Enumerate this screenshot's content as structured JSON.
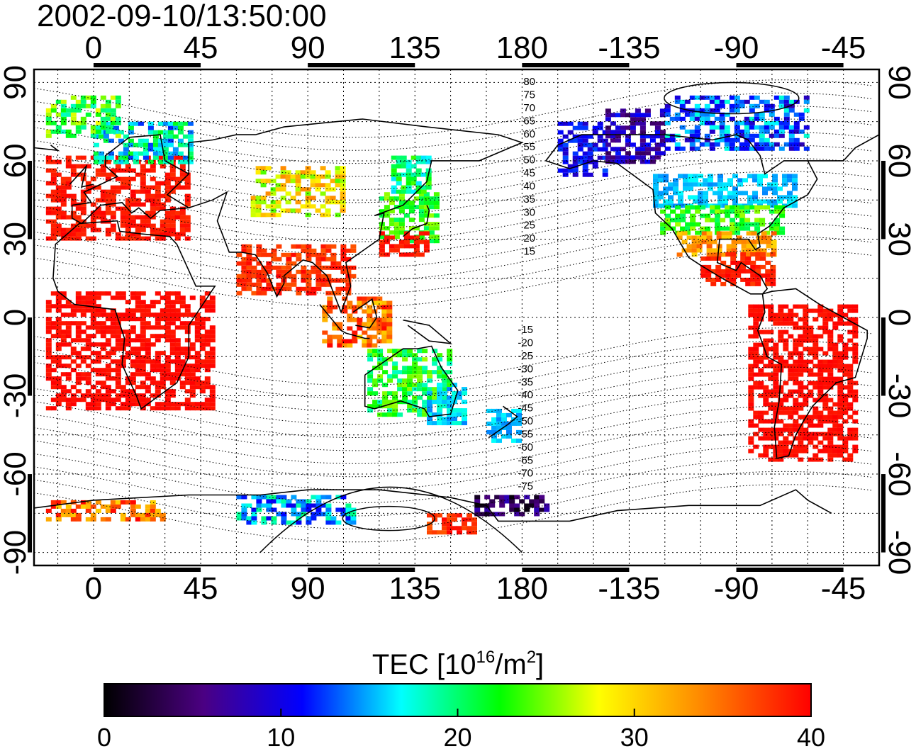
{
  "timestamp": "2002-09-10/13:50:00",
  "colorbar": {
    "title_main": "TEC  [10",
    "title_exp": "16",
    "title_mid": "/m",
    "title_exp2": "2",
    "title_end": "]",
    "range": [
      0,
      40
    ],
    "ticks": [
      "0",
      "10",
      "20",
      "30",
      "40"
    ],
    "colors": [
      "#000000",
      "#4b0082",
      "#0000ff",
      "#00ffff",
      "#00ff00",
      "#ffff00",
      "#ff8c00",
      "#ff0000"
    ]
  },
  "map": {
    "lon_range_east": [
      -25,
      330
    ],
    "lat_range": [
      -95,
      95
    ],
    "top_ticks": [
      "0",
      "45",
      "90",
      "135",
      "180",
      "-135",
      "-90",
      "-45"
    ],
    "bottom_ticks": [
      "0",
      "45",
      "90",
      "135",
      "180",
      "-135",
      "-90",
      "-45"
    ],
    "lat_ticks": [
      "90",
      "60",
      "30",
      "0",
      "-30",
      "-60",
      "-90"
    ],
    "magnetic_lat_labels_north": [
      "80",
      "75",
      "70",
      "65",
      "60",
      "55",
      "50",
      "45",
      "40",
      "35",
      "30",
      "25",
      "20",
      "15"
    ],
    "magnetic_lat_labels_south": [
      "-15",
      "-20",
      "-25",
      "-30",
      "-35",
      "-40",
      "-45",
      "-50",
      "-55",
      "-60",
      "-65",
      "-70",
      "-75"
    ]
  },
  "tec_regions": [
    {
      "lon0": -20,
      "lon1": 40,
      "lat0": 30,
      "lat1": 62,
      "tec0": 38,
      "tec1": 40
    },
    {
      "lon0": 0,
      "lon1": 40,
      "lat0": 60,
      "lat1": 75,
      "tec0": 12,
      "tec1": 22
    },
    {
      "lon0": -20,
      "lon1": 10,
      "lat0": 70,
      "lat1": 85,
      "tec0": 18,
      "tec1": 28
    },
    {
      "lon0": 66,
      "lon1": 105,
      "lat0": 40,
      "lat1": 58,
      "tec0": 24,
      "tec1": 34
    },
    {
      "lon0": 120,
      "lon1": 145,
      "lat0": 30,
      "lat1": 48,
      "tec0": 20,
      "tec1": 26
    },
    {
      "lon0": 120,
      "lon1": 140,
      "lat0": 24,
      "lat1": 33,
      "tec0": 38,
      "tec1": 40
    },
    {
      "lon0": 125,
      "lon1": 140,
      "lat0": 48,
      "lat1": 62,
      "tec0": 16,
      "tec1": 24
    },
    {
      "lon0": 96,
      "lon1": 125,
      "lat0": -10,
      "lat1": 8,
      "tec0": 30,
      "tec1": 40
    },
    {
      "lon0": 115,
      "lon1": 150,
      "lat0": -38,
      "lat1": -12,
      "tec0": 18,
      "tec1": 26
    },
    {
      "lon0": 140,
      "lon1": 155,
      "lat0": -40,
      "lat1": -25,
      "tec0": 14,
      "tec1": 18
    },
    {
      "lon0": 165,
      "lon1": 178,
      "lat0": -47,
      "lat1": -35,
      "tec0": 14,
      "tec1": 17
    },
    {
      "lon0": -20,
      "lon1": 50,
      "lat0": -35,
      "lat1": 10,
      "tec0": 39,
      "tec1": 40
    },
    {
      "lon0": 60,
      "lon1": 110,
      "lat0": 10,
      "lat1": 28,
      "tec0": 36,
      "tec1": 40
    },
    {
      "lon0": 195,
      "lon1": 215,
      "lat0": 55,
      "lat1": 75,
      "tec0": 8,
      "tec1": 13
    },
    {
      "lon0": 215,
      "lon1": 240,
      "lat0": 60,
      "lat1": 80,
      "tec0": 4,
      "tec1": 12
    },
    {
      "lon0": 240,
      "lon1": 300,
      "lat0": 65,
      "lat1": 85,
      "tec0": 8,
      "tec1": 18
    },
    {
      "lon0": 235,
      "lon1": 295,
      "lat0": 42,
      "lat1": 55,
      "tec0": 14,
      "tec1": 17
    },
    {
      "lon0": 238,
      "lon1": 290,
      "lat0": 33,
      "lat1": 43,
      "tec0": 20,
      "tec1": 26
    },
    {
      "lon0": 245,
      "lon1": 285,
      "lat0": 24,
      "lat1": 33,
      "tec0": 30,
      "tec1": 36
    },
    {
      "lon0": 255,
      "lon1": 285,
      "lat0": 12,
      "lat1": 25,
      "tec0": 37,
      "tec1": 40
    },
    {
      "lon0": 275,
      "lon1": 320,
      "lat0": -55,
      "lat1": 5,
      "tec0": 39,
      "tec1": 40
    },
    {
      "lon0": 160,
      "lon1": 190,
      "lat0": -75,
      "lat1": -68,
      "tec0": 0,
      "tec1": 8
    },
    {
      "lon0": 60,
      "lon1": 110,
      "lat0": -78,
      "lat1": -68,
      "tec0": 10,
      "tec1": 20
    },
    {
      "lon0": -20,
      "lon1": 30,
      "lat0": -78,
      "lat1": -70,
      "tec0": 30,
      "tec1": 40
    },
    {
      "lon0": 140,
      "lon1": 160,
      "lat0": -82,
      "lat1": -75,
      "tec0": 36,
      "tec1": 40
    }
  ]
}
